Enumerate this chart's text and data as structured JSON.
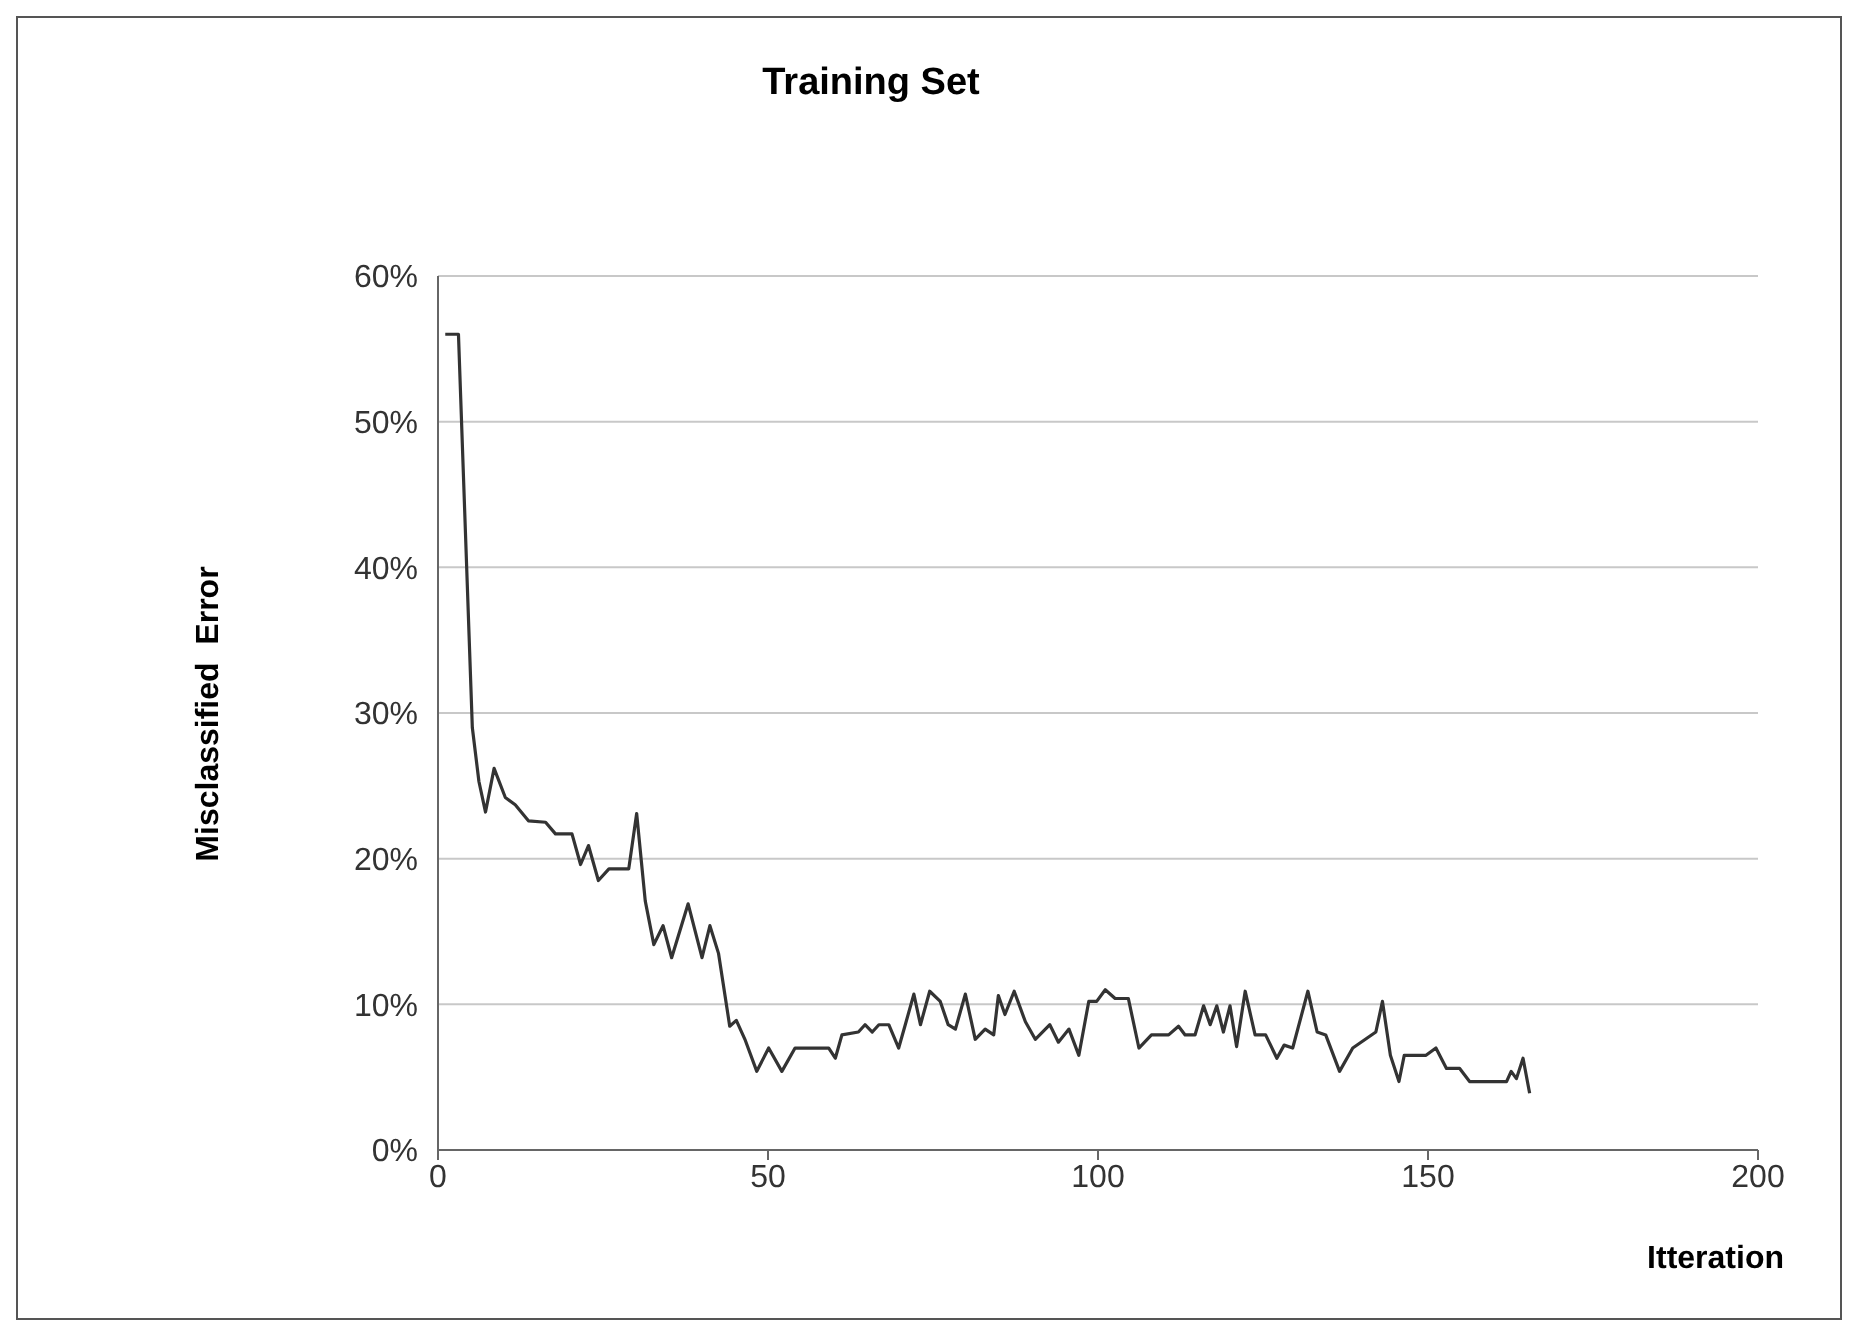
{
  "chart_data": {
    "type": "line",
    "title": "Training Set",
    "xlabel": "Itteration",
    "ylabel": "Misclassified  Error",
    "x": [
      1.1,
      3.1,
      5.2,
      6.2,
      7.2,
      8.5,
      10.2,
      11.7,
      13.7,
      16.3,
      17.8,
      20.3,
      21.6,
      22.8,
      24.3,
      25.9,
      28.9,
      30.1,
      31.4,
      32.7,
      34.1,
      35.4,
      37.9,
      40,
      41.2,
      42.5,
      44.2,
      45.2,
      46.5,
      48.3,
      50.1,
      52.1,
      54.1,
      59.2,
      60.2,
      61.2,
      63.7,
      64.7,
      65.8,
      66.8,
      68.3,
      69.8,
      70.8,
      72.1,
      73.1,
      74.5,
      76.1,
      77.3,
      78.4,
      79.9,
      81.4,
      82.9,
      84.2,
      84.9,
      85.9,
      87.3,
      89,
      90.5,
      92.7,
      94,
      95.6,
      97.1,
      98.6,
      99.8,
      101.1,
      102.6,
      104.6,
      106.2,
      108.1,
      110.7,
      112.2,
      113.2,
      114.7,
      116,
      117,
      118,
      119,
      120,
      121,
      122.3,
      123.8,
      125.4,
      127.1,
      128.2,
      129.5,
      131.8,
      133.2,
      134.5,
      136.6,
      138.6,
      142.1,
      143.1,
      144.3,
      145.6,
      146.4,
      149.7,
      151.2,
      152.8,
      154.8,
      156.3,
      161.9,
      162.6,
      163.4,
      164.4,
      165.4
    ],
    "series": [
      {
        "color": "#333333",
        "values": [
          56,
          56,
          29,
          25.3,
          23.2,
          26.2,
          24.2,
          23.7,
          22.6,
          22.5,
          21.7,
          21.7,
          19.6,
          20.9,
          18.5,
          19.3,
          19.3,
          23.1,
          17.1,
          14.1,
          15.4,
          13.2,
          16.9,
          13.2,
          15.4,
          13.5,
          8.5,
          8.9,
          7.6,
          5.4,
          7,
          5.4,
          7,
          7,
          6.3,
          7.9,
          8.1,
          8.6,
          8.1,
          8.6,
          8.6,
          7,
          8.6,
          10.7,
          8.6,
          10.9,
          10.2,
          8.6,
          8.3,
          10.7,
          7.6,
          8.3,
          7.9,
          10.6,
          9.3,
          10.9,
          8.8,
          7.6,
          8.6,
          7.4,
          8.3,
          6.5,
          10.2,
          10.2,
          11,
          10.4,
          10.4,
          7,
          7.9,
          7.9,
          8.5,
          7.9,
          7.9,
          9.9,
          8.6,
          9.9,
          8.1,
          9.9,
          7.1,
          10.9,
          7.9,
          7.9,
          6.3,
          7.2,
          7,
          10.9,
          8.1,
          7.9,
          5.4,
          7,
          8.1,
          10.2,
          6.5,
          4.7,
          6.5,
          6.5,
          7,
          5.6,
          5.6,
          4.7,
          4.7,
          5.4,
          4.9,
          6.3,
          3.9
        ]
      }
    ],
    "xlim": [
      0,
      200
    ],
    "xticks": [
      0,
      50,
      100,
      150,
      200
    ],
    "ylim": [
      0,
      60
    ],
    "yticks": [
      {
        "value": 0,
        "label": "0%"
      },
      {
        "value": 10,
        "label": "10%"
      },
      {
        "value": 20,
        "label": "20%"
      },
      {
        "value": 30,
        "label": "30%"
      },
      {
        "value": 40,
        "label": "40%"
      },
      {
        "value": 50,
        "label": "50%"
      },
      {
        "value": 60,
        "label": "60%"
      }
    ],
    "grid": "y",
    "marker": "none",
    "line_style": "solid"
  }
}
